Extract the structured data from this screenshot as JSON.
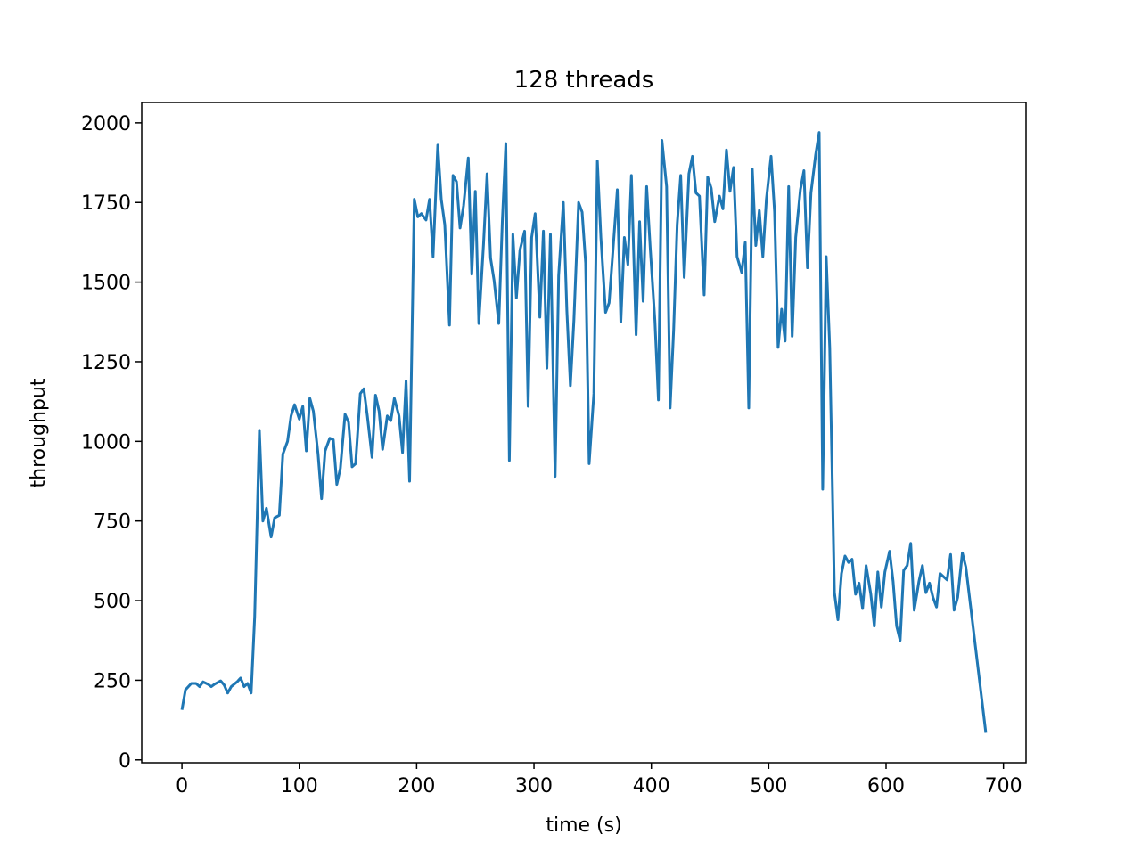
{
  "chart_data": {
    "type": "line",
    "title": "128 threads",
    "x_label": "time (s)",
    "y_label": "throughput",
    "color": "#1f77b4",
    "grid": false,
    "x": [
      0,
      3,
      8,
      12,
      15,
      18,
      22,
      25,
      28,
      33,
      36,
      39,
      42,
      47,
      50,
      53,
      56,
      59,
      62,
      66,
      69,
      72,
      76,
      79,
      83,
      86,
      90,
      93,
      96,
      100,
      103,
      106,
      109,
      112,
      116,
      119,
      122,
      126,
      129,
      132,
      135,
      139,
      142,
      145,
      148,
      152,
      155,
      158,
      162,
      165,
      168,
      171,
      175,
      178,
      181,
      185,
      188,
      191,
      194,
      198,
      201,
      204,
      208,
      211,
      214,
      218,
      221,
      224,
      228,
      231,
      234,
      237,
      240,
      244,
      247,
      250,
      253,
      257,
      260,
      263,
      266,
      270,
      273,
      276,
      279,
      282,
      285,
      288,
      292,
      295,
      298,
      301,
      305,
      308,
      311,
      314,
      318,
      321,
      325,
      328,
      331,
      334,
      338,
      341,
      344,
      347,
      351,
      354,
      357,
      361,
      364,
      367,
      371,
      374,
      377,
      380,
      383,
      387,
      390,
      393,
      396,
      399,
      403,
      406,
      409,
      413,
      416,
      419,
      422,
      425,
      428,
      432,
      435,
      438,
      441,
      445,
      448,
      451,
      454,
      458,
      461,
      464,
      467,
      470,
      473,
      477,
      480,
      483,
      486,
      489,
      492,
      495,
      498,
      502,
      505,
      508,
      511,
      514,
      517,
      520,
      523,
      527,
      530,
      533,
      536,
      540,
      543,
      546,
      549,
      552,
      556,
      559,
      562,
      565,
      568,
      571,
      574,
      577,
      580,
      583,
      587,
      590,
      593,
      596,
      599,
      603,
      606,
      609,
      612,
      615,
      618,
      621,
      624,
      628,
      631,
      634,
      637,
      640,
      643,
      646,
      649,
      652,
      655,
      658,
      661,
      665,
      668,
      685
    ],
    "values": [
      157,
      220,
      240,
      240,
      230,
      245,
      238,
      230,
      238,
      248,
      235,
      210,
      230,
      245,
      257,
      230,
      240,
      210,
      450,
      1035,
      750,
      790,
      700,
      760,
      768,
      960,
      1000,
      1080,
      1115,
      1070,
      1110,
      970,
      1135,
      1095,
      960,
      820,
      970,
      1010,
      1005,
      865,
      915,
      1085,
      1060,
      920,
      930,
      1150,
      1165,
      1080,
      950,
      1145,
      1095,
      975,
      1080,
      1065,
      1135,
      1080,
      965,
      1190,
      875,
      1760,
      1705,
      1715,
      1695,
      1760,
      1580,
      1930,
      1760,
      1680,
      1365,
      1835,
      1815,
      1670,
      1740,
      1890,
      1525,
      1785,
      1370,
      1620,
      1840,
      1575,
      1505,
      1370,
      1690,
      1935,
      940,
      1650,
      1450,
      1600,
      1660,
      1110,
      1640,
      1715,
      1390,
      1660,
      1230,
      1650,
      890,
      1520,
      1750,
      1410,
      1175,
      1380,
      1750,
      1720,
      1560,
      930,
      1150,
      1880,
      1640,
      1405,
      1435,
      1585,
      1790,
      1375,
      1640,
      1555,
      1835,
      1335,
      1690,
      1440,
      1800,
      1610,
      1380,
      1130,
      1945,
      1800,
      1105,
      1350,
      1680,
      1835,
      1515,
      1840,
      1895,
      1780,
      1770,
      1460,
      1830,
      1795,
      1690,
      1770,
      1730,
      1915,
      1785,
      1860,
      1580,
      1530,
      1625,
      1105,
      1855,
      1615,
      1725,
      1580,
      1760,
      1895,
      1720,
      1295,
      1415,
      1315,
      1800,
      1330,
      1640,
      1790,
      1850,
      1545,
      1780,
      1900,
      1970,
      850,
      1580,
      1295,
      525,
      440,
      585,
      640,
      620,
      630,
      520,
      555,
      475,
      610,
      520,
      420,
      590,
      480,
      590,
      655,
      560,
      420,
      375,
      595,
      610,
      680,
      470,
      560,
      610,
      525,
      555,
      510,
      480,
      585,
      575,
      565,
      645,
      470,
      510,
      650,
      605,
      85
    ],
    "xlim": [
      -34.25,
      719.25
    ],
    "xticks": [
      0,
      100,
      200,
      300,
      400,
      500,
      600,
      700
    ],
    "ylim": [
      -9,
      2064
    ],
    "yticks": [
      0,
      250,
      500,
      750,
      1000,
      1250,
      1500,
      1750,
      2000
    ]
  }
}
